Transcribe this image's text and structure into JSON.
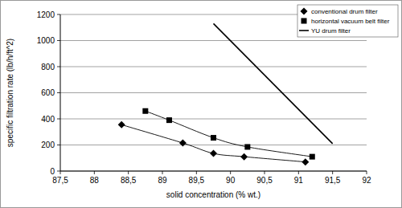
{
  "chart_data": {
    "type": "line",
    "x_label": "solid concentration (% wt.)",
    "y_label": "specific filtration rate (lb/h/ft^2)",
    "xlim": [
      87.5,
      92
    ],
    "xticks": [
      {
        "value": 87.5,
        "label": "87,5"
      },
      88,
      {
        "value": 88.5,
        "label": "88,5"
      },
      89,
      {
        "value": 89.5,
        "label": "89,5"
      },
      90,
      {
        "value": 90.5,
        "label": "90,5"
      },
      91,
      {
        "value": 91.5,
        "label": "91,5"
      },
      92
    ],
    "ylim": [
      0,
      1200
    ],
    "yticks": [
      0,
      200,
      400,
      600,
      800,
      1000,
      1200
    ],
    "grid": true,
    "legend": "top-right",
    "series": [
      {
        "name": "conventional drum filter",
        "color": "#000000",
        "marker": "diamond",
        "line_style": "solid",
        "x": [
          88.4,
          89.3,
          89.75,
          90.2,
          91.1
        ],
        "values": [
          355,
          215,
          135,
          110,
          70
        ]
      },
      {
        "name": "horizontal vacuum belt filter",
        "color": "#000000",
        "marker": "square",
        "line_style": "solid",
        "x": [
          88.75,
          89.1,
          89.75,
          90.25,
          91.2
        ],
        "values": [
          460,
          390,
          255,
          185,
          110
        ]
      },
      {
        "name": "YU drum filter",
        "color": "#000000",
        "marker": "none",
        "line_style": "solid",
        "x": [
          89.75,
          91.5
        ],
        "values": [
          1130,
          210
        ]
      }
    ]
  }
}
